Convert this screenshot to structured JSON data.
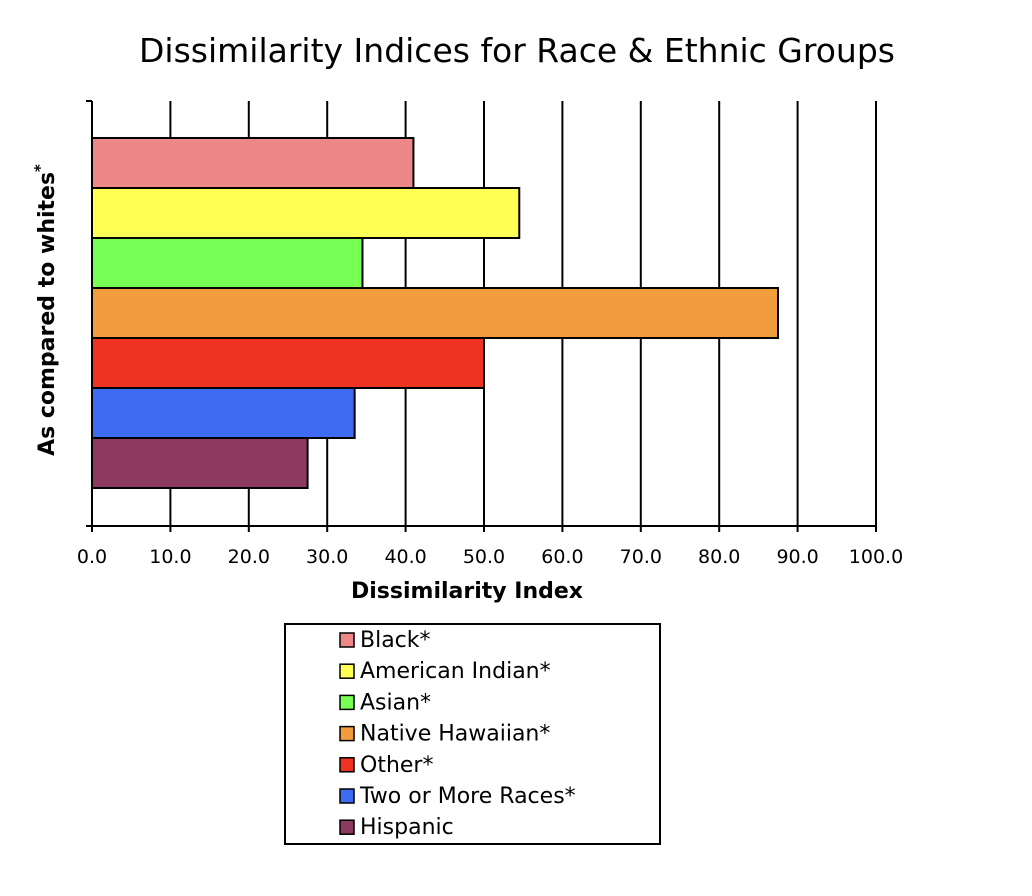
{
  "chart_data": {
    "type": "bar",
    "orientation": "horizontal",
    "title": "Dissimilarity Indices for Race & Ethnic Groups",
    "xlabel": "Dissimilarity Index",
    "ylabel": "As compared to whites",
    "ylabel_superscript": "*",
    "xlim": [
      0,
      100
    ],
    "xticks": [
      "0.0",
      "10.0",
      "20.0",
      "30.0",
      "40.0",
      "50.0",
      "60.0",
      "70.0",
      "80.0",
      "90.0",
      "100.0"
    ],
    "grid": "vertical",
    "legend_position": "bottom",
    "series": [
      {
        "name": "Black*",
        "value": 41.0,
        "color": "#EE8888"
      },
      {
        "name": "American Indian*",
        "value": 54.5,
        "color": "#FFFF55"
      },
      {
        "name": "Asian*",
        "value": 34.5,
        "color": "#77FF55"
      },
      {
        "name": "Native Hawaiian*",
        "value": 87.5,
        "color": "#F29D3D"
      },
      {
        "name": "Other*",
        "value": 50.0,
        "color": "#EE3322"
      },
      {
        "name": "Two or More Races*",
        "value": 33.5,
        "color": "#3D6BF2"
      },
      {
        "name": "Hispanic",
        "value": 27.5,
        "color": "#8C3A60"
      }
    ]
  }
}
